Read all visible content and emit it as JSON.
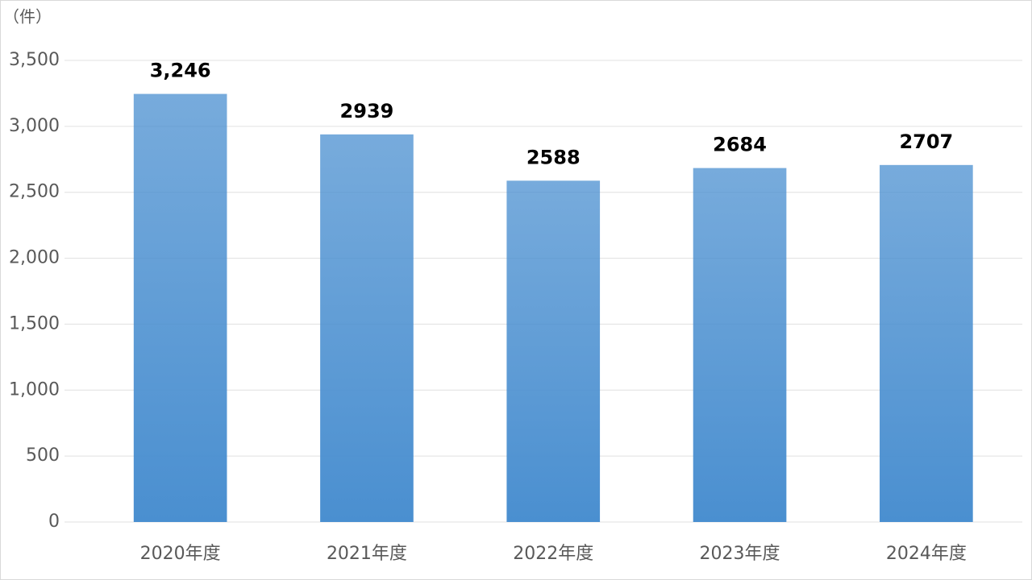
{
  "chart_data": {
    "type": "bar",
    "y_axis_label": "（件）",
    "categories": [
      "2020年度",
      "2021年度",
      "2022年度",
      "2023年度",
      "2024年度"
    ],
    "values": [
      3246,
      2939,
      2588,
      2684,
      2707
    ],
    "value_labels": [
      "3,246",
      "2939",
      "2588",
      "2684",
      "2707"
    ],
    "color": "#4a8fd0",
    "ylim": [
      0,
      3500
    ],
    "yticks": [
      0,
      500,
      {
        "value": 1000,
        "label": "1,000"
      },
      {
        "value": 1500,
        "label": "1,500"
      },
      {
        "value": 2000,
        "label": "2,000"
      },
      {
        "value": 2500,
        "label": "2,500"
      },
      {
        "value": 3000,
        "label": "3,000"
      },
      {
        "value": 3500,
        "label": "3,500"
      }
    ],
    "grid": true
  }
}
